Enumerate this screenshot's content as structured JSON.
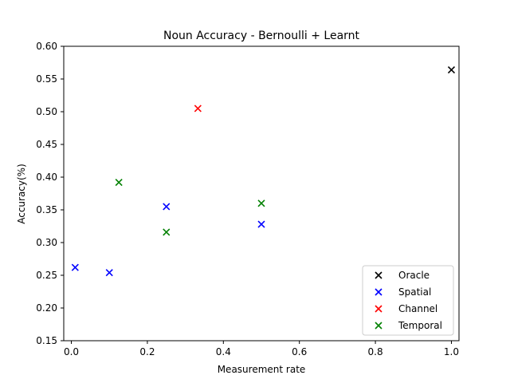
{
  "chart_data": {
    "type": "scatter",
    "title": "Noun Accuracy - Bernoulli + Learnt",
    "xlabel": "Measurement rate",
    "ylabel": "Accuracy(%)",
    "xlim": [
      -0.02,
      1.02
    ],
    "ylim": [
      0.15,
      0.6
    ],
    "xticks": [
      0.0,
      0.2,
      0.4,
      0.6,
      0.8,
      1.0
    ],
    "xtick_labels": [
      "0.0",
      "0.2",
      "0.4",
      "0.6",
      "0.8",
      "1.0"
    ],
    "yticks": [
      0.15,
      0.2,
      0.25,
      0.3,
      0.35,
      0.4,
      0.45,
      0.5,
      0.55,
      0.6
    ],
    "ytick_labels": [
      "0.15",
      "0.20",
      "0.25",
      "0.30",
      "0.35",
      "0.40",
      "0.45",
      "0.50",
      "0.55",
      "0.60"
    ],
    "grid": false,
    "legend_position": "bottom-right",
    "marker": "x",
    "series": [
      {
        "name": "Oracle",
        "color": "#000000",
        "points": [
          [
            1.0,
            0.564
          ]
        ]
      },
      {
        "name": "Spatial",
        "color": "#0000ff",
        "points": [
          [
            0.01,
            0.262
          ],
          [
            0.1,
            0.254
          ],
          [
            0.25,
            0.355
          ],
          [
            0.5,
            0.328
          ]
        ]
      },
      {
        "name": "Channel",
        "color": "#ff0000",
        "points": [
          [
            0.333,
            0.505
          ]
        ]
      },
      {
        "name": "Temporal",
        "color": "#008000",
        "points": [
          [
            0.125,
            0.392
          ],
          [
            0.25,
            0.316
          ],
          [
            0.5,
            0.36
          ]
        ]
      }
    ]
  }
}
